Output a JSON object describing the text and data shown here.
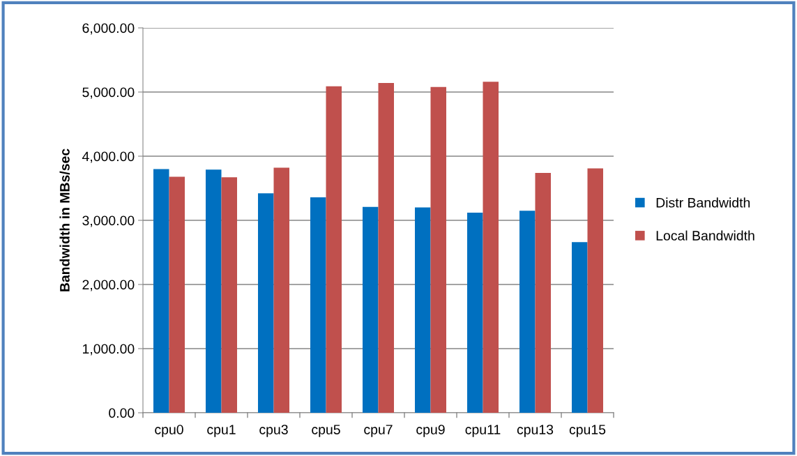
{
  "chart_data": {
    "type": "bar",
    "ylabel": "Bandwidth in MBs/sec",
    "categories": [
      "cpu0",
      "cpu1",
      "cpu3",
      "cpu5",
      "cpu7",
      "cpu9",
      "cpu11",
      "cpu13",
      "cpu15"
    ],
    "series": [
      {
        "name": "Distr Bandwidth",
        "color": "#0070c0",
        "values": [
          3800,
          3790,
          3420,
          3360,
          3210,
          3200,
          3120,
          3150,
          2660
        ]
      },
      {
        "name": "Local Bandwidth",
        "color": "#c0504d",
        "values": [
          3680,
          3670,
          3820,
          5090,
          5140,
          5080,
          5160,
          3740,
          3810
        ]
      }
    ],
    "ylim": [
      0,
      6000
    ],
    "yticks": [
      {
        "value": 0,
        "label": "0.00"
      },
      {
        "value": 1000,
        "label": "1,000.00"
      },
      {
        "value": 2000,
        "label": "2,000.00"
      },
      {
        "value": 3000,
        "label": "3,000.00"
      },
      {
        "value": 4000,
        "label": "4,000.00"
      },
      {
        "value": 5000,
        "label": "5,000.00"
      },
      {
        "value": 6000,
        "label": "6,000.00"
      }
    ],
    "grid": "y",
    "legend": "right"
  }
}
